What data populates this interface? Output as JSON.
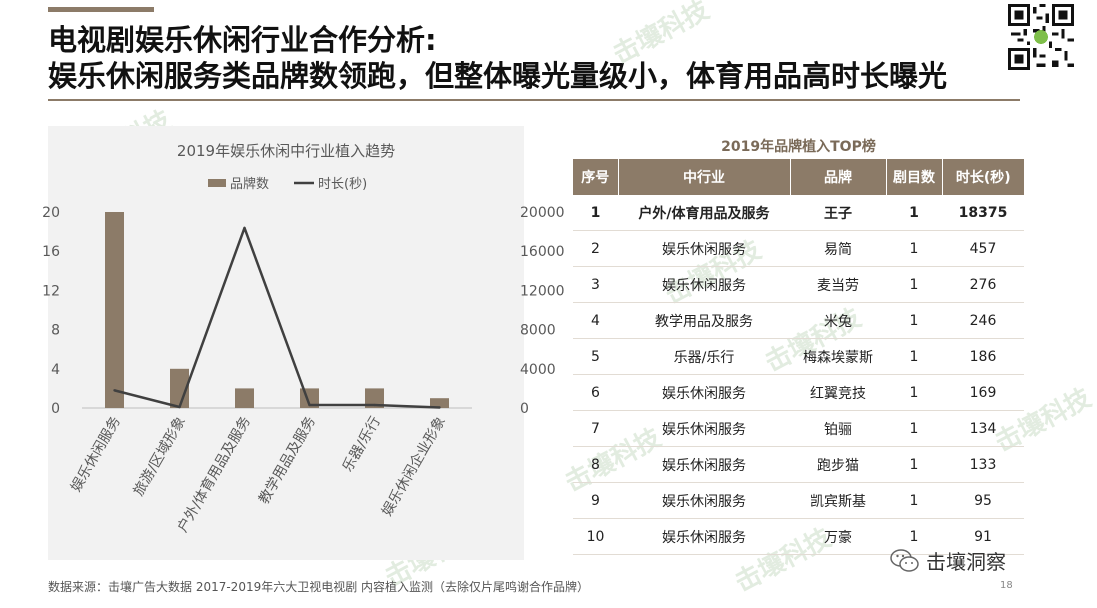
{
  "header": {
    "title_line1": "电视剧娱乐休闲行业合作分析:",
    "title_line2": "娱乐休闲服务类品牌数领跑，但整体曝光量级小，体育用品高时长曝光"
  },
  "watermark": {
    "text": "击壤科技"
  },
  "chart_data": {
    "type": "bar",
    "title": "2019年娱乐休闲中行业植入趋势",
    "categories": [
      "娱乐休闲服务",
      "旅游/区域形象",
      "户外/体育用品及服务",
      "教学用品及服务",
      "乐器/乐行",
      "娱乐休闲企业形象"
    ],
    "series": [
      {
        "name": "品牌数",
        "type": "bar",
        "axis": "left",
        "values": [
          20,
          4,
          2,
          2,
          2,
          1
        ]
      },
      {
        "name": "时长(秒)",
        "type": "line",
        "axis": "right",
        "values": [
          1800,
          100,
          18375,
          300,
          300,
          50
        ]
      }
    ],
    "y_left": {
      "lim": [
        0,
        20
      ],
      "ticks": [
        0,
        4,
        8,
        12,
        16,
        20
      ]
    },
    "y_right": {
      "lim": [
        0,
        20000
      ],
      "ticks": [
        0,
        4000,
        8000,
        12000,
        16000,
        20000
      ]
    },
    "legend_position": "top",
    "colors": {
      "bar": "#8c7b68",
      "line": "#404040"
    }
  },
  "table": {
    "title": "2019年品牌植入TOP榜",
    "headers": [
      "序号",
      "中行业",
      "品牌",
      "剧目数",
      "时长(秒)"
    ],
    "rows": [
      [
        "1",
        "户外/体育用品及服务",
        "王子",
        "1",
        "18375"
      ],
      [
        "2",
        "娱乐休闲服务",
        "易简",
        "1",
        "457"
      ],
      [
        "3",
        "娱乐休闲服务",
        "麦当劳",
        "1",
        "276"
      ],
      [
        "4",
        "教学用品及服务",
        "米兔",
        "1",
        "246"
      ],
      [
        "5",
        "乐器/乐行",
        "梅森埃蒙斯",
        "1",
        "186"
      ],
      [
        "6",
        "娱乐休闲服务",
        "红翼竞技",
        "1",
        "169"
      ],
      [
        "7",
        "娱乐休闲服务",
        "铂骊",
        "1",
        "134"
      ],
      [
        "8",
        "娱乐休闲服务",
        "跑步猫",
        "1",
        "133"
      ],
      [
        "9",
        "娱乐休闲服务",
        "凯宾斯基",
        "1",
        "95"
      ],
      [
        "10",
        "娱乐休闲服务",
        "万豪",
        "1",
        "91"
      ]
    ]
  },
  "footer": {
    "source": "数据来源：击壤广告大数据  2017-2019年六大卫视电视剧 内容植入监测（去除仅片尾鸣谢合作品牌）",
    "page_number": "18",
    "brand_name": "击壤洞察",
    "brand_icon": "wechat-icon"
  },
  "colors": {
    "accent": "#8c7b68",
    "header_text": "#ffffff"
  }
}
